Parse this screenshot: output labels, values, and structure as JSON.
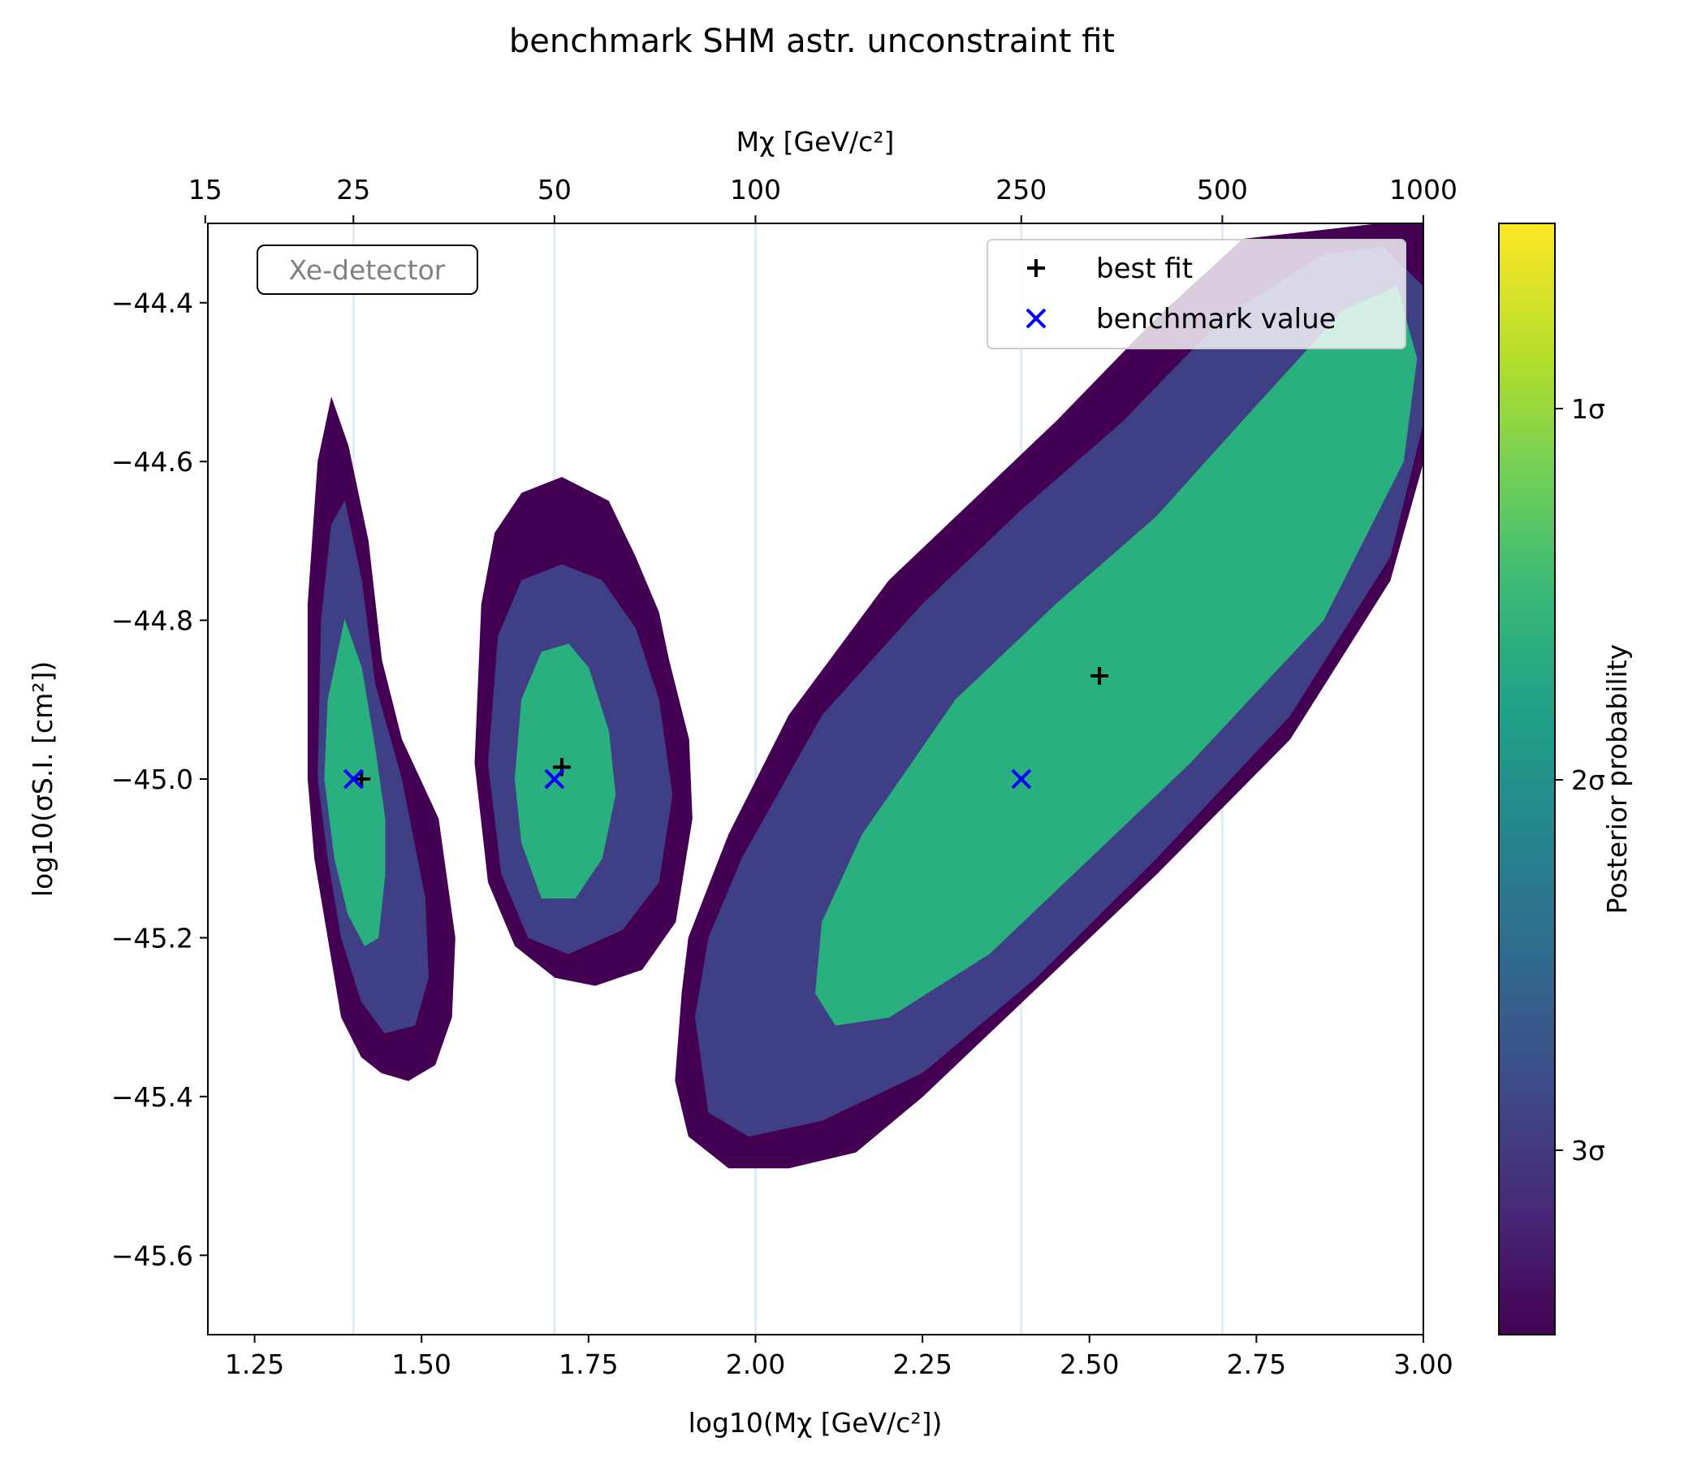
{
  "chart_data": {
    "type": "contour",
    "title": "benchmark SHM astr. unconstraint fit",
    "xlabel": "log10(Mχ [GeV/c²])",
    "ylabel": "log10(σS.I. [cm²])",
    "top_xlabel": "Mχ [GeV/c²]",
    "xlim": [
      1.18,
      3.0
    ],
    "ylim": [
      -45.7,
      -44.3
    ],
    "x_ticks": [
      "1.25",
      "1.50",
      "1.75",
      "2.00",
      "2.25",
      "2.50",
      "2.75",
      "3.00"
    ],
    "y_ticks": [
      "−44.4",
      "−44.6",
      "−44.8",
      "−45.0",
      "−45.2",
      "−45.4",
      "−45.6"
    ],
    "top_ticks": [
      {
        "label": "15",
        "mass": 15
      },
      {
        "label": "25",
        "mass": 25
      },
      {
        "label": "50",
        "mass": 50
      },
      {
        "label": "100",
        "mass": 100
      },
      {
        "label": "250",
        "mass": 250
      },
      {
        "label": "500",
        "mass": 500
      },
      {
        "label": "1000",
        "mass": 1000
      }
    ],
    "benchmark_masses_log10": [
      1.398,
      1.699,
      2.0,
      2.398,
      2.699
    ],
    "annotation": "Xe-detector",
    "legend": {
      "placement": "top-right",
      "entries": [
        {
          "label": "best fit",
          "marker": "+",
          "color": "#000000"
        },
        {
          "label": "benchmark value",
          "marker": "x",
          "color": "#0000ff"
        }
      ]
    },
    "best_fit": [
      {
        "x": 1.41,
        "y": -45.0
      },
      {
        "x": 1.71,
        "y": -44.985
      },
      {
        "x": 2.515,
        "y": -44.87
      }
    ],
    "benchmark": [
      {
        "x": 1.398,
        "y": -45.0
      },
      {
        "x": 1.699,
        "y": -45.0
      },
      {
        "x": 2.398,
        "y": -45.0
      }
    ],
    "contour_levels": [
      {
        "level": "3σ",
        "color": "#440154"
      },
      {
        "level": "2σ",
        "color": "#3e3f85"
      },
      {
        "level": "1σ",
        "color": "#2ab07f"
      }
    ],
    "contours": [
      {
        "id": "25GeV",
        "regions": [
          {
            "level": "3σ",
            "points": [
              [
                1.33,
                -45.0
              ],
              [
                1.33,
                -44.78
              ],
              [
                1.345,
                -44.6
              ],
              [
                1.365,
                -44.52
              ],
              [
                1.39,
                -44.58
              ],
              [
                1.42,
                -44.7
              ],
              [
                1.44,
                -44.85
              ],
              [
                1.47,
                -44.95
              ],
              [
                1.525,
                -45.05
              ],
              [
                1.55,
                -45.2
              ],
              [
                1.545,
                -45.3
              ],
              [
                1.52,
                -45.36
              ],
              [
                1.48,
                -45.38
              ],
              [
                1.44,
                -45.37
              ],
              [
                1.41,
                -45.35
              ],
              [
                1.38,
                -45.3
              ],
              [
                1.36,
                -45.2
              ],
              [
                1.34,
                -45.1
              ]
            ]
          },
          {
            "level": "2σ",
            "points": [
              [
                1.345,
                -45.0
              ],
              [
                1.35,
                -44.8
              ],
              [
                1.365,
                -44.68
              ],
              [
                1.385,
                -44.65
              ],
              [
                1.41,
                -44.75
              ],
              [
                1.43,
                -44.88
              ],
              [
                1.47,
                -45.0
              ],
              [
                1.505,
                -45.15
              ],
              [
                1.51,
                -45.25
              ],
              [
                1.49,
                -45.31
              ],
              [
                1.445,
                -45.32
              ],
              [
                1.41,
                -45.28
              ],
              [
                1.38,
                -45.2
              ],
              [
                1.36,
                -45.1
              ]
            ]
          },
          {
            "level": "1σ",
            "points": [
              [
                1.355,
                -45.0
              ],
              [
                1.36,
                -44.9
              ],
              [
                1.385,
                -44.8
              ],
              [
                1.41,
                -44.86
              ],
              [
                1.43,
                -44.96
              ],
              [
                1.445,
                -45.05
              ],
              [
                1.445,
                -45.12
              ],
              [
                1.435,
                -45.2
              ],
              [
                1.415,
                -45.21
              ],
              [
                1.39,
                -45.17
              ],
              [
                1.37,
                -45.1
              ]
            ]
          }
        ]
      },
      {
        "id": "50GeV",
        "regions": [
          {
            "level": "3σ",
            "points": [
              [
                1.58,
                -44.98
              ],
              [
                1.59,
                -44.78
              ],
              [
                1.61,
                -44.69
              ],
              [
                1.65,
                -44.64
              ],
              [
                1.71,
                -44.62
              ],
              [
                1.78,
                -44.65
              ],
              [
                1.82,
                -44.72
              ],
              [
                1.855,
                -44.79
              ],
              [
                1.87,
                -44.85
              ],
              [
                1.9,
                -44.95
              ],
              [
                1.905,
                -45.05
              ],
              [
                1.88,
                -45.18
              ],
              [
                1.83,
                -45.24
              ],
              [
                1.76,
                -45.26
              ],
              [
                1.7,
                -45.25
              ],
              [
                1.64,
                -45.21
              ],
              [
                1.6,
                -45.13
              ]
            ]
          },
          {
            "level": "2σ",
            "points": [
              [
                1.6,
                -44.98
              ],
              [
                1.615,
                -44.82
              ],
              [
                1.65,
                -44.75
              ],
              [
                1.71,
                -44.73
              ],
              [
                1.77,
                -44.75
              ],
              [
                1.82,
                -44.81
              ],
              [
                1.855,
                -44.9
              ],
              [
                1.875,
                -45.02
              ],
              [
                1.855,
                -45.13
              ],
              [
                1.8,
                -45.19
              ],
              [
                1.72,
                -45.22
              ],
              [
                1.66,
                -45.2
              ],
              [
                1.62,
                -45.12
              ]
            ]
          },
          {
            "level": "1σ",
            "points": [
              [
                1.64,
                -45.0
              ],
              [
                1.65,
                -44.9
              ],
              [
                1.68,
                -44.84
              ],
              [
                1.72,
                -44.83
              ],
              [
                1.75,
                -44.86
              ],
              [
                1.78,
                -44.94
              ],
              [
                1.79,
                -45.02
              ],
              [
                1.77,
                -45.1
              ],
              [
                1.73,
                -45.15
              ],
              [
                1.68,
                -45.15
              ],
              [
                1.65,
                -45.08
              ]
            ]
          }
        ]
      },
      {
        "id": "250GeV",
        "regions": [
          {
            "level": "3σ",
            "points": [
              [
                1.89,
                -45.27
              ],
              [
                1.9,
                -45.2
              ],
              [
                1.96,
                -45.07
              ],
              [
                2.05,
                -44.92
              ],
              [
                2.2,
                -44.75
              ],
              [
                2.3,
                -44.67
              ],
              [
                2.45,
                -44.55
              ],
              [
                2.6,
                -44.42
              ],
              [
                2.73,
                -44.32
              ],
              [
                2.94,
                -44.3
              ],
              [
                3.0,
                -44.3
              ],
              [
                3.0,
                -44.6
              ],
              [
                2.95,
                -44.75
              ],
              [
                2.8,
                -44.95
              ],
              [
                2.6,
                -45.12
              ],
              [
                2.4,
                -45.28
              ],
              [
                2.25,
                -45.4
              ],
              [
                2.15,
                -45.47
              ],
              [
                2.05,
                -45.49
              ],
              [
                1.96,
                -45.49
              ],
              [
                1.9,
                -45.45
              ],
              [
                1.88,
                -45.38
              ]
            ]
          },
          {
            "level": "2σ",
            "points": [
              [
                1.91,
                -45.3
              ],
              [
                1.93,
                -45.2
              ],
              [
                1.98,
                -45.1
              ],
              [
                2.1,
                -44.92
              ],
              [
                2.25,
                -44.78
              ],
              [
                2.4,
                -44.66
              ],
              [
                2.55,
                -44.55
              ],
              [
                2.7,
                -44.42
              ],
              [
                2.85,
                -44.34
              ],
              [
                2.94,
                -44.33
              ],
              [
                3.0,
                -44.38
              ],
              [
                3.0,
                -44.55
              ],
              [
                2.95,
                -44.72
              ],
              [
                2.8,
                -44.92
              ],
              [
                2.6,
                -45.1
              ],
              [
                2.42,
                -45.25
              ],
              [
                2.25,
                -45.37
              ],
              [
                2.1,
                -45.43
              ],
              [
                1.99,
                -45.45
              ],
              [
                1.93,
                -45.42
              ]
            ]
          },
          {
            "level": "1σ",
            "points": [
              [
                2.09,
                -45.27
              ],
              [
                2.1,
                -45.18
              ],
              [
                2.16,
                -45.07
              ],
              [
                2.3,
                -44.9
              ],
              [
                2.45,
                -44.78
              ],
              [
                2.6,
                -44.67
              ],
              [
                2.75,
                -44.53
              ],
              [
                2.88,
                -44.41
              ],
              [
                2.96,
                -44.38
              ],
              [
                2.99,
                -44.47
              ],
              [
                2.97,
                -44.6
              ],
              [
                2.85,
                -44.8
              ],
              [
                2.65,
                -44.98
              ],
              [
                2.5,
                -45.1
              ],
              [
                2.35,
                -45.22
              ],
              [
                2.2,
                -45.3
              ],
              [
                2.12,
                -45.31
              ]
            ]
          }
        ]
      }
    ],
    "colorbar": {
      "label": "Posterior probability",
      "ticks": [
        "1σ",
        "2σ",
        "3σ"
      ],
      "colormap": [
        "#440154",
        "#482878",
        "#3e4a89",
        "#31688e",
        "#26828e",
        "#1f9e89",
        "#35b779",
        "#6ece58",
        "#b5de2b",
        "#fde725"
      ]
    }
  }
}
